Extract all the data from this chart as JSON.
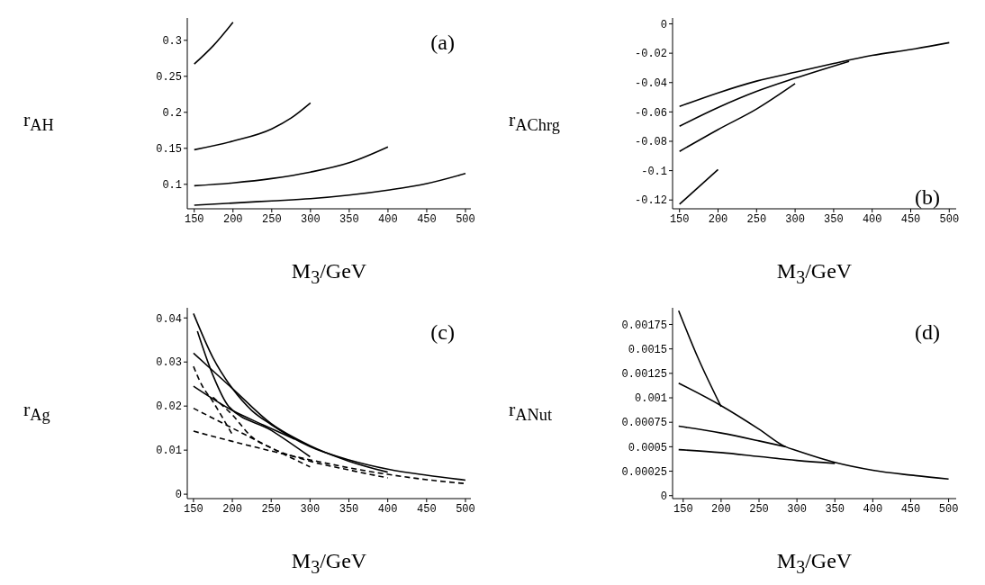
{
  "chart_data": [
    {
      "type": "line",
      "xlabel": "M$_{3}$/GeV",
      "ylabel": "r$_{AH}$",
      "annotations": [
        "(a)"
      ],
      "xlim": [
        141,
        507
      ],
      "ylim": [
        0.066,
        0.331
      ],
      "xticks": [
        150,
        200,
        250,
        300,
        350,
        400,
        450,
        500
      ],
      "yticks": [
        0.1,
        0.15,
        0.2,
        0.25,
        0.3
      ],
      "marker": "none",
      "series": [
        {
          "color": "#000000",
          "line_style": "solid",
          "x": [
            150,
            175,
            200
          ],
          "values": [
            0.267,
            0.293,
            0.325
          ]
        },
        {
          "color": "#000000",
          "line_style": "solid",
          "x": [
            150,
            200,
            250,
            275,
            300
          ],
          "values": [
            0.148,
            0.16,
            0.177,
            0.192,
            0.213
          ]
        },
        {
          "color": "#000000",
          "line_style": "solid",
          "x": [
            150,
            200,
            250,
            300,
            350,
            400
          ],
          "values": [
            0.098,
            0.102,
            0.108,
            0.117,
            0.13,
            0.152
          ]
        },
        {
          "color": "#000000",
          "line_style": "solid",
          "x": [
            150,
            200,
            250,
            300,
            350,
            400,
            450,
            500
          ],
          "values": [
            0.071,
            0.074,
            0.077,
            0.08,
            0.085,
            0.092,
            0.101,
            0.115
          ]
        }
      ]
    },
    {
      "type": "line",
      "xlabel": "M$_{3}$/GeV",
      "ylabel": "r$_{AChrg}$",
      "annotations": [
        "(b)"
      ],
      "xlim": [
        141,
        509
      ],
      "ylim": [
        -0.126,
        0.004
      ],
      "xticks": [
        150,
        200,
        250,
        300,
        350,
        400,
        450,
        500
      ],
      "yticks": [
        0,
        -0.02,
        -0.04,
        -0.06,
        -0.08,
        -0.1,
        -0.12
      ],
      "marker": "none",
      "series": [
        {
          "color": "#000000",
          "line_style": "solid",
          "x": [
            150,
            200,
            250,
            300,
            350,
            400,
            450,
            500
          ],
          "values": [
            -0.0563,
            -0.047,
            -0.039,
            -0.033,
            -0.027,
            -0.0215,
            -0.0175,
            -0.0128
          ]
        },
        {
          "color": "#000000",
          "line_style": "solid",
          "x": [
            150,
            200,
            250,
            300,
            370
          ],
          "values": [
            -0.0697,
            -0.057,
            -0.046,
            -0.037,
            -0.0255
          ]
        },
        {
          "color": "#000000",
          "line_style": "solid",
          "x": [
            150,
            200,
            250,
            300
          ],
          "values": [
            -0.0869,
            -0.072,
            -0.058,
            -0.0407
          ]
        },
        {
          "color": "#000000",
          "line_style": "solid",
          "x": [
            150,
            200
          ],
          "values": [
            -0.1229,
            -0.0993
          ]
        }
      ]
    },
    {
      "type": "line",
      "xlabel": "M$_{3}$/GeV",
      "ylabel": "r$_{Ag}$",
      "annotations": [
        "(c)"
      ],
      "xlim": [
        142,
        507
      ],
      "ylim": [
        -0.001,
        0.0423
      ],
      "xticks": [
        150,
        200,
        250,
        300,
        350,
        400,
        450,
        500
      ],
      "yticks": [
        0,
        0.01,
        0.02,
        0.03,
        0.04
      ],
      "marker": "none",
      "series": [
        {
          "color": "#000000",
          "line_style": "solid",
          "x": [
            150,
            175,
            200,
            225,
            250,
            300,
            350,
            400,
            450,
            500
          ],
          "values": [
            0.041,
            0.031,
            0.024,
            0.019,
            0.0158,
            0.0108,
            0.0078,
            0.0057,
            0.0043,
            0.0032
          ]
        },
        {
          "color": "#000000",
          "line_style": "solid",
          "x": [
            155,
            175,
            195,
            250,
            300
          ],
          "values": [
            0.037,
            0.027,
            0.02,
            0.0145,
            0.0085
          ]
        },
        {
          "color": "#000000",
          "line_style": "solid",
          "x": [
            150,
            200,
            250,
            300,
            350,
            400
          ],
          "values": [
            0.032,
            0.024,
            0.016,
            0.011,
            0.0075,
            0.005
          ]
        },
        {
          "color": "#000000",
          "line_style": "solid",
          "x": [
            150,
            200,
            240,
            280
          ],
          "values": [
            0.0245,
            0.019,
            0.0157,
            0.0125
          ]
        },
        {
          "color": "#000000",
          "line_style": "dashed",
          "x": [
            150,
            160,
            175,
            200
          ],
          "values": [
            0.029,
            0.025,
            0.021,
            0.0135
          ]
        },
        {
          "color": "#000000",
          "line_style": "dashed",
          "x": [
            150,
            200,
            250,
            300
          ],
          "values": [
            0.0195,
            0.015,
            0.0105,
            0.0062
          ]
        },
        {
          "color": "#000000",
          "line_style": "dashed",
          "x": [
            150,
            200,
            250,
            300,
            350,
            400,
            450,
            500
          ],
          "values": [
            0.0143,
            0.012,
            0.0098,
            0.0078,
            0.006,
            0.0045,
            0.0033,
            0.0024
          ]
        },
        {
          "color": "#000000",
          "line_style": "dashed",
          "x": [
            175,
            200,
            225,
            250,
            300,
            350,
            400
          ],
          "values": [
            0.022,
            0.018,
            0.013,
            0.0105,
            0.0075,
            0.0055,
            0.0037
          ]
        }
      ]
    },
    {
      "type": "line",
      "xlabel": "M$_{3}$/GeV",
      "ylabel": "r$_{ANut}$",
      "annotations": [
        "(d)"
      ],
      "xlim": [
        136,
        510
      ],
      "ylim": [
        -3e-05,
        0.00192
      ],
      "xticks": [
        150,
        200,
        250,
        300,
        350,
        400,
        450,
        500
      ],
      "yticks": [
        0,
        0.00025,
        0.0005,
        0.00075,
        0.001,
        0.00125,
        0.0015,
        0.00175
      ],
      "marker": "none",
      "series": [
        {
          "color": "#000000",
          "line_style": "solid",
          "x": [
            144,
            170,
            200
          ],
          "values": [
            0.00189,
            0.0014,
            0.00091
          ]
        },
        {
          "color": "#000000",
          "line_style": "solid",
          "x": [
            144,
            200,
            250,
            285,
            300,
            350,
            400,
            450,
            500
          ],
          "values": [
            0.00115,
            0.00092,
            0.00068,
            0.0005,
            0.00046,
            0.00034,
            0.00026,
            0.00021,
            0.00017
          ]
        },
        {
          "color": "#000000",
          "line_style": "solid",
          "x": [
            144,
            200,
            250,
            285
          ],
          "values": [
            0.00071,
            0.00064,
            0.00056,
            0.0005
          ]
        },
        {
          "color": "#000000",
          "line_style": "solid",
          "x": [
            144,
            200,
            250,
            300,
            350
          ],
          "values": [
            0.00047,
            0.00044,
            0.0004,
            0.00036,
            0.00033
          ]
        }
      ]
    }
  ]
}
